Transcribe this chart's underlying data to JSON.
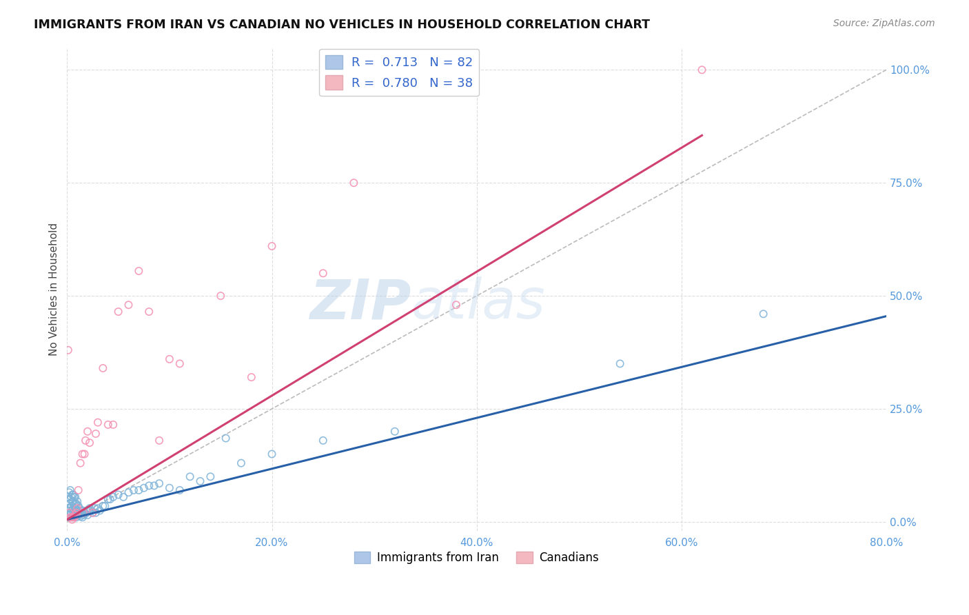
{
  "title": "IMMIGRANTS FROM IRAN VS CANADIAN NO VEHICLES IN HOUSEHOLD CORRELATION CHART",
  "source": "Source: ZipAtlas.com",
  "xlabel_ticks": [
    "0.0%",
    "",
    "",
    "",
    "",
    "20.0%",
    "",
    "",
    "",
    "",
    "40.0%",
    "",
    "",
    "",
    "",
    "60.0%",
    "",
    "",
    "",
    "",
    "80.0%"
  ],
  "ylabel_ticks": [
    "0.0%",
    "25.0%",
    "50.0%",
    "75.0%",
    "100.0%"
  ],
  "xlim": [
    0.0,
    0.8
  ],
  "ylim": [
    -0.02,
    1.05
  ],
  "legend_entries": [
    {
      "label": "R =  0.713   N = 82",
      "color": "#aec6e8"
    },
    {
      "label": "R =  0.780   N = 38",
      "color": "#f4b8c1"
    }
  ],
  "watermark_zip": "ZIP",
  "watermark_atlas": "atlas",
  "blue_scatter": {
    "x": [
      0.001,
      0.001,
      0.002,
      0.002,
      0.002,
      0.003,
      0.003,
      0.003,
      0.003,
      0.004,
      0.004,
      0.004,
      0.005,
      0.005,
      0.005,
      0.005,
      0.006,
      0.006,
      0.006,
      0.006,
      0.007,
      0.007,
      0.007,
      0.007,
      0.008,
      0.008,
      0.008,
      0.008,
      0.009,
      0.009,
      0.009,
      0.01,
      0.01,
      0.01,
      0.011,
      0.011,
      0.012,
      0.012,
      0.013,
      0.013,
      0.014,
      0.015,
      0.015,
      0.016,
      0.017,
      0.018,
      0.019,
      0.02,
      0.021,
      0.022,
      0.023,
      0.025,
      0.027,
      0.028,
      0.03,
      0.032,
      0.035,
      0.037,
      0.04,
      0.042,
      0.045,
      0.05,
      0.055,
      0.06,
      0.065,
      0.07,
      0.075,
      0.08,
      0.085,
      0.09,
      0.1,
      0.11,
      0.12,
      0.13,
      0.14,
      0.155,
      0.17,
      0.2,
      0.25,
      0.32,
      0.54,
      0.68
    ],
    "y": [
      0.03,
      0.055,
      0.025,
      0.04,
      0.065,
      0.015,
      0.03,
      0.05,
      0.07,
      0.02,
      0.035,
      0.055,
      0.01,
      0.025,
      0.045,
      0.06,
      0.015,
      0.028,
      0.045,
      0.06,
      0.015,
      0.025,
      0.038,
      0.055,
      0.015,
      0.025,
      0.04,
      0.055,
      0.01,
      0.025,
      0.04,
      0.015,
      0.025,
      0.045,
      0.015,
      0.035,
      0.015,
      0.03,
      0.012,
      0.025,
      0.02,
      0.01,
      0.025,
      0.015,
      0.02,
      0.018,
      0.025,
      0.015,
      0.025,
      0.03,
      0.025,
      0.02,
      0.03,
      0.02,
      0.03,
      0.025,
      0.035,
      0.035,
      0.05,
      0.05,
      0.055,
      0.06,
      0.055,
      0.065,
      0.07,
      0.07,
      0.075,
      0.08,
      0.08,
      0.085,
      0.075,
      0.07,
      0.1,
      0.09,
      0.1,
      0.185,
      0.13,
      0.15,
      0.18,
      0.2,
      0.35,
      0.46
    ]
  },
  "pink_scatter": {
    "x": [
      0.001,
      0.002,
      0.003,
      0.004,
      0.005,
      0.006,
      0.007,
      0.008,
      0.009,
      0.01,
      0.011,
      0.013,
      0.015,
      0.016,
      0.017,
      0.018,
      0.02,
      0.022,
      0.025,
      0.028,
      0.03,
      0.035,
      0.04,
      0.045,
      0.05,
      0.06,
      0.07,
      0.08,
      0.09,
      0.1,
      0.11,
      0.15,
      0.18,
      0.2,
      0.25,
      0.28,
      0.38,
      0.62
    ],
    "y": [
      0.38,
      0.02,
      0.01,
      0.01,
      0.005,
      0.01,
      0.01,
      0.015,
      0.02,
      0.03,
      0.07,
      0.13,
      0.15,
      0.02,
      0.15,
      0.18,
      0.2,
      0.175,
      0.02,
      0.195,
      0.22,
      0.34,
      0.215,
      0.215,
      0.465,
      0.48,
      0.555,
      0.465,
      0.18,
      0.36,
      0.35,
      0.5,
      0.32,
      0.61,
      0.55,
      0.75,
      0.48,
      1.0
    ]
  },
  "blue_line": {
    "x0": 0.0,
    "x1": 0.8,
    "y0": 0.005,
    "y1": 0.455
  },
  "pink_line": {
    "x0": 0.0,
    "x1": 0.62,
    "y0": 0.005,
    "y1": 0.855
  },
  "diagonal_line": {
    "x0": 0.0,
    "x1": 0.8,
    "y0": 0.0,
    "y1": 1.0
  },
  "scatter_color_blue": "#7EB3D8",
  "scatter_color_pink": "#F48FB1",
  "line_color_blue": "#2860A8",
  "line_color_pink": "#D04070",
  "diagonal_color": "#BBBBBB",
  "bg_color": "#FFFFFF",
  "grid_color": "#DDDDDD"
}
